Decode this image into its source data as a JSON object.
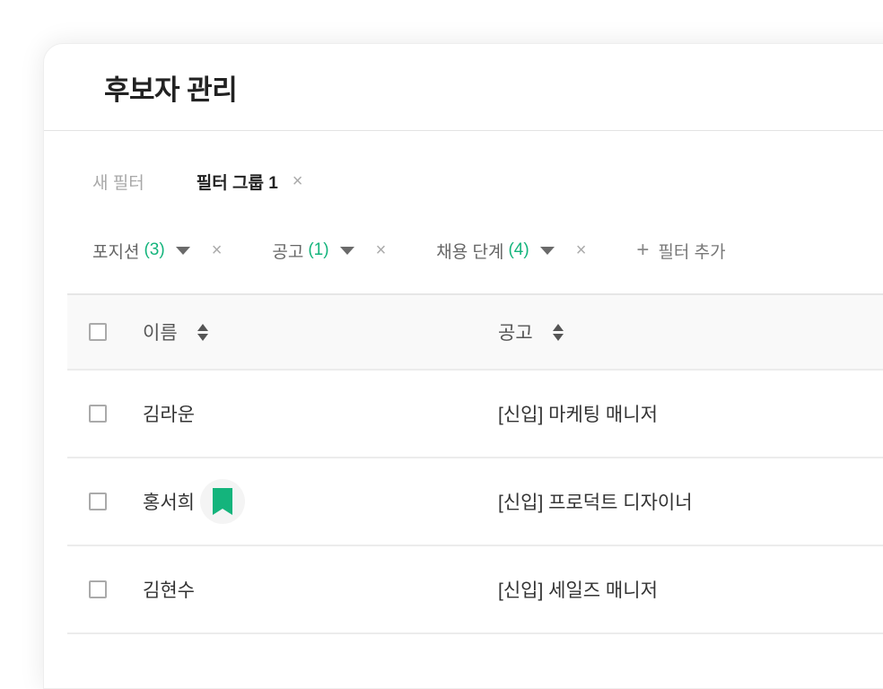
{
  "header": {
    "title": "후보자 관리"
  },
  "filter_groups": [
    {
      "label": "새 필터"
    },
    {
      "label": "필터 그룹 1",
      "active": true
    }
  ],
  "filters": [
    {
      "label": "포지션",
      "count": "(3)"
    },
    {
      "label": "공고",
      "count": "(1)"
    },
    {
      "label": "채용 단계",
      "count": "(4)"
    }
  ],
  "add_filter": "필터 추가",
  "table": {
    "columns": [
      "이름",
      "공고"
    ],
    "rows": [
      {
        "name": "김라운",
        "job": "[신입] 마케팅 매니저",
        "bookmarked": false
      },
      {
        "name": "홍서희",
        "job": "[신입] 프로덕트 디자이너",
        "bookmarked": true
      },
      {
        "name": "김현수",
        "job": "[신입] 세일즈 매니저",
        "bookmarked": false
      }
    ]
  },
  "colors": {
    "accent": "#14b47c"
  },
  "close_symbol": "×"
}
